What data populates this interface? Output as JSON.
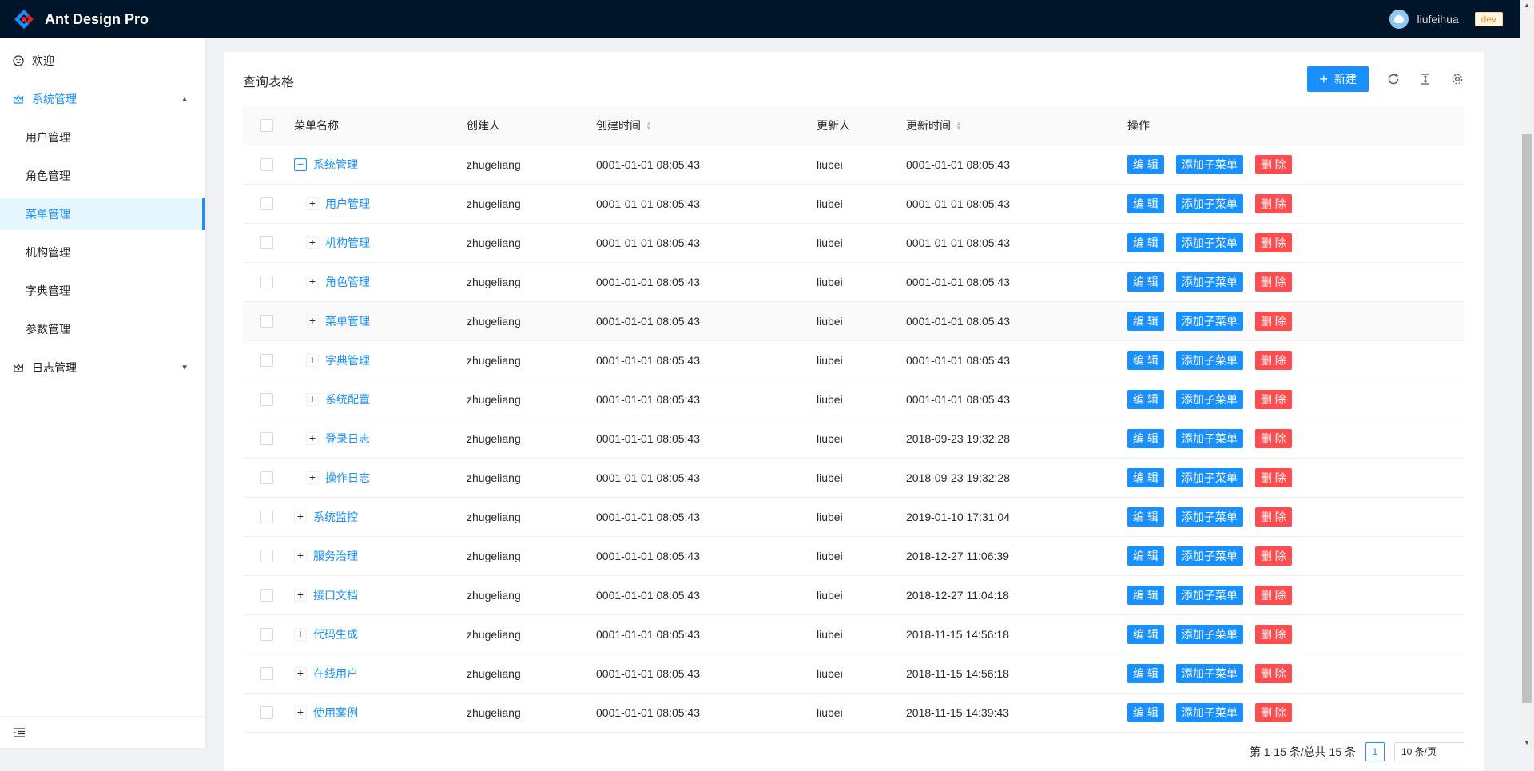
{
  "app": {
    "title": "Ant Design Pro",
    "user": "liufeihua",
    "env": "dev"
  },
  "sidebar": {
    "items": [
      {
        "label": "欢迎",
        "icon": "smile-icon"
      },
      {
        "label": "系统管理",
        "icon": "crown-icon",
        "open": true,
        "children": [
          "用户管理",
          "角色管理",
          "菜单管理",
          "机构管理",
          "字典管理",
          "参数管理"
        ],
        "selected": "菜单管理"
      },
      {
        "label": "日志管理",
        "icon": "crown-icon",
        "open": false
      }
    ]
  },
  "table": {
    "title": "查询表格",
    "new_label": "新建",
    "columns": [
      "菜单名称",
      "创建人",
      "创建时间",
      "更新人",
      "更新时间",
      "操作"
    ],
    "actions": {
      "edit": "编 辑",
      "add_child": "添加子菜单",
      "delete": "删 除"
    },
    "rows": [
      {
        "name": "系统管理",
        "level": 0,
        "expanded": true,
        "creator": "zhugeliang",
        "created": "0001-01-01 08:05:43",
        "updater": "liubei",
        "updated": "0001-01-01 08:05:43"
      },
      {
        "name": "用户管理",
        "level": 1,
        "creator": "zhugeliang",
        "created": "0001-01-01 08:05:43",
        "updater": "liubei",
        "updated": "0001-01-01 08:05:43"
      },
      {
        "name": "机构管理",
        "level": 1,
        "creator": "zhugeliang",
        "created": "0001-01-01 08:05:43",
        "updater": "liubei",
        "updated": "0001-01-01 08:05:43"
      },
      {
        "name": "角色管理",
        "level": 1,
        "creator": "zhugeliang",
        "created": "0001-01-01 08:05:43",
        "updater": "liubei",
        "updated": "0001-01-01 08:05:43"
      },
      {
        "name": "菜单管理",
        "level": 1,
        "hover": true,
        "creator": "zhugeliang",
        "created": "0001-01-01 08:05:43",
        "updater": "liubei",
        "updated": "0001-01-01 08:05:43"
      },
      {
        "name": "字典管理",
        "level": 1,
        "creator": "zhugeliang",
        "created": "0001-01-01 08:05:43",
        "updater": "liubei",
        "updated": "0001-01-01 08:05:43"
      },
      {
        "name": "系统配置",
        "level": 1,
        "creator": "zhugeliang",
        "created": "0001-01-01 08:05:43",
        "updater": "liubei",
        "updated": "0001-01-01 08:05:43"
      },
      {
        "name": "登录日志",
        "level": 1,
        "creator": "zhugeliang",
        "created": "0001-01-01 08:05:43",
        "updater": "liubei",
        "updated": "2018-09-23 19:32:28"
      },
      {
        "name": "操作日志",
        "level": 1,
        "creator": "zhugeliang",
        "created": "0001-01-01 08:05:43",
        "updater": "liubei",
        "updated": "2018-09-23 19:32:28"
      },
      {
        "name": "系统监控",
        "level": 0,
        "creator": "zhugeliang",
        "created": "0001-01-01 08:05:43",
        "updater": "liubei",
        "updated": "2019-01-10 17:31:04"
      },
      {
        "name": "服务治理",
        "level": 0,
        "creator": "zhugeliang",
        "created": "0001-01-01 08:05:43",
        "updater": "liubei",
        "updated": "2018-12-27 11:06:39"
      },
      {
        "name": "接口文档",
        "level": 0,
        "creator": "zhugeliang",
        "created": "0001-01-01 08:05:43",
        "updater": "liubei",
        "updated": "2018-12-27 11:04:18"
      },
      {
        "name": "代码生成",
        "level": 0,
        "creator": "zhugeliang",
        "created": "0001-01-01 08:05:43",
        "updater": "liubei",
        "updated": "2018-11-15 14:56:18"
      },
      {
        "name": "在线用户",
        "level": 0,
        "creator": "zhugeliang",
        "created": "0001-01-01 08:05:43",
        "updater": "liubei",
        "updated": "2018-11-15 14:56:18"
      },
      {
        "name": "使用案例",
        "level": 0,
        "creator": "zhugeliang",
        "created": "0001-01-01 08:05:43",
        "updater": "liubei",
        "updated": "2018-11-15 14:39:43"
      }
    ]
  },
  "pagination": {
    "total_text": "第 1-15 条/总共 15 条",
    "current": "1",
    "page_size": "10 条/页"
  },
  "colors": {
    "primary": "#1890ff",
    "danger": "#ff4d4f",
    "header": "#001529"
  }
}
